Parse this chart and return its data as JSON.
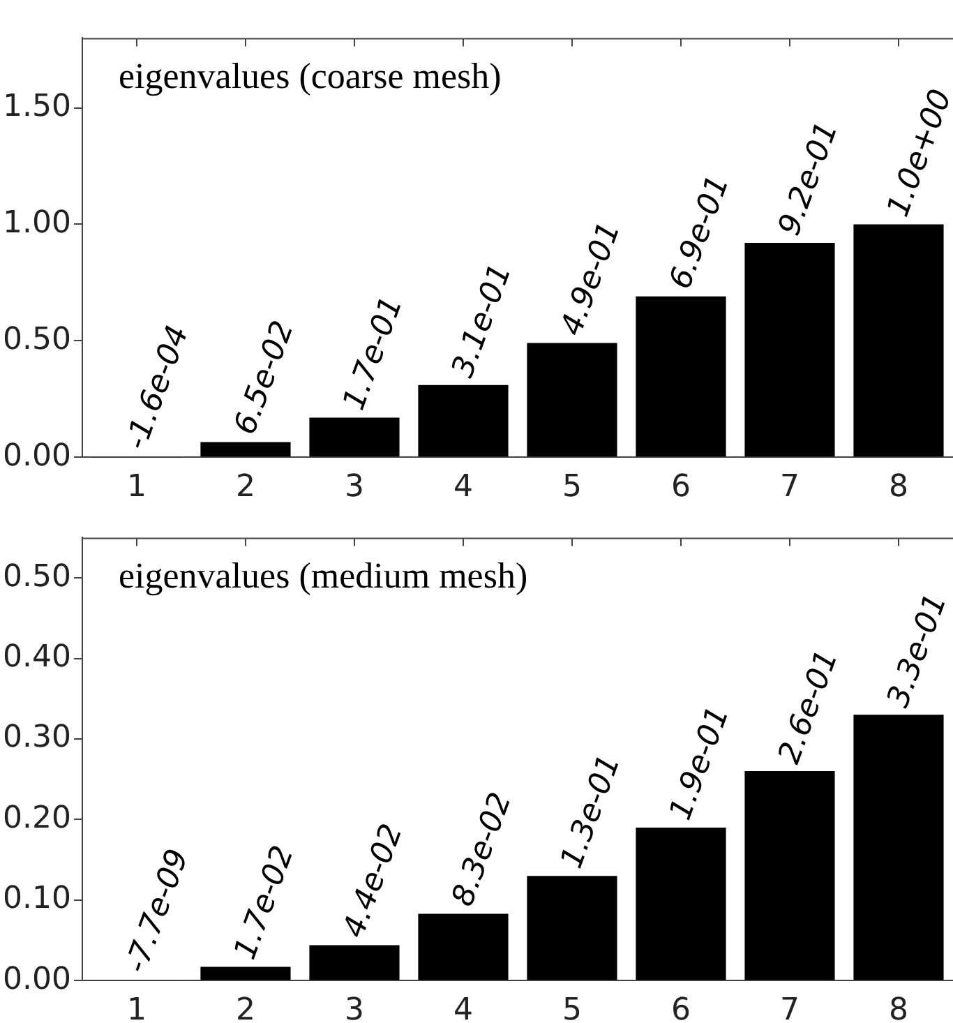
{
  "chart_data": [
    {
      "type": "bar",
      "title": "eigenvalues (coarse mesh)",
      "categories": [
        "1",
        "2",
        "3",
        "4",
        "5",
        "6",
        "7",
        "8"
      ],
      "values": [
        -0.00016,
        0.065,
        0.17,
        0.31,
        0.49,
        0.69,
        0.92,
        1.0
      ],
      "value_labels": [
        "-1.6e-04",
        "6.5e-02",
        "1.7e-01",
        "3.1e-01",
        "4.9e-01",
        "6.9e-01",
        "9.2e-01",
        "1.0e+00"
      ],
      "color": "#000000",
      "ylim": [
        -0.0002,
        1.8
      ],
      "yticks": [
        {
          "value": 0,
          "label": "0.00"
        },
        {
          "value": 0.5,
          "label": "0.50"
        },
        {
          "value": 1,
          "label": "1.00"
        },
        {
          "value": 1.5,
          "label": "1.50"
        }
      ],
      "grid": false,
      "legend": false
    },
    {
      "type": "bar",
      "title": "eigenvalues (medium mesh)",
      "categories": [
        "1",
        "2",
        "3",
        "4",
        "5",
        "6",
        "7",
        "8"
      ],
      "values": [
        -7.7e-09,
        0.017,
        0.044,
        0.083,
        0.13,
        0.19,
        0.26,
        0.33
      ],
      "value_labels": [
        "-7.7e-09",
        "1.7e-02",
        "4.4e-02",
        "8.3e-02",
        "1.3e-01",
        "1.9e-01",
        "2.6e-01",
        "3.3e-01"
      ],
      "color": "#000000",
      "ylim": [
        -1e-08,
        0.55
      ],
      "yticks": [
        {
          "value": 0,
          "label": "0.00"
        },
        {
          "value": 0.1,
          "label": "0.10"
        },
        {
          "value": 0.2,
          "label": "0.20"
        },
        {
          "value": 0.3,
          "label": "0.30"
        },
        {
          "value": 0.4,
          "label": "0.40"
        },
        {
          "value": 0.5,
          "label": "0.50"
        }
      ],
      "grid": false,
      "legend": false
    }
  ]
}
